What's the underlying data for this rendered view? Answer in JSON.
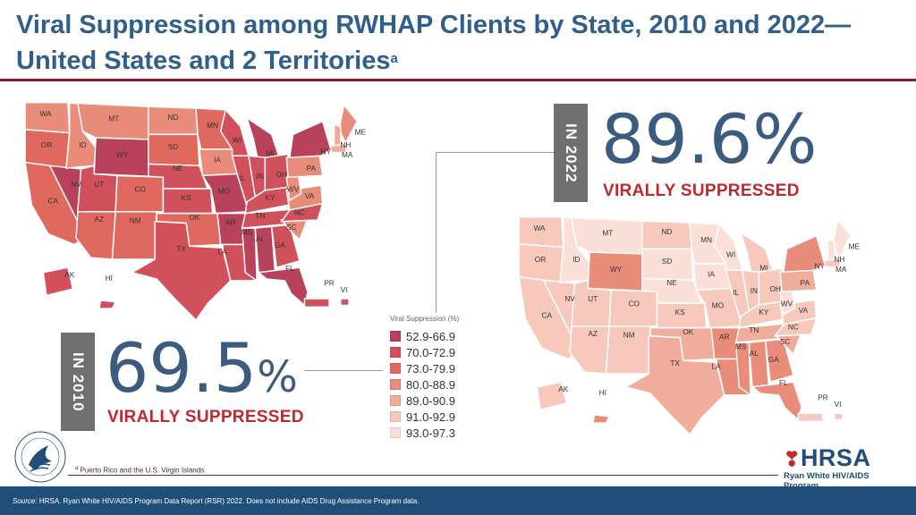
{
  "header": {
    "title_line1": "Viral Suppression among RWHAP Clients by State, 2010 and 2022—",
    "title_line2": "United States and 2 Territories",
    "title_superscript": "a"
  },
  "stat_2022": {
    "year_label": "IN 2022",
    "value": "89.6%",
    "label": "VIRALLY SUPPRESSED"
  },
  "stat_2010": {
    "year_label": "IN 2010",
    "value": "69.5",
    "percent_sign": "%",
    "label": "VIRALLY SUPPRESSED"
  },
  "legend": {
    "title": "Viral Suppression (%)",
    "items": [
      {
        "label": "52.9-66.9",
        "color": "#b8415b"
      },
      {
        "label": "70.0-72.9",
        "color": "#d0505c"
      },
      {
        "label": "73.0-79.9",
        "color": "#e0695f"
      },
      {
        "label": "80.0-88.9",
        "color": "#e98c7a"
      },
      {
        "label": "89.0-90.9",
        "color": "#f1ad9c"
      },
      {
        "label": "91.0-92.9",
        "color": "#f7c9bd"
      },
      {
        "label": "93.0-97.3",
        "color": "#fbe0da"
      }
    ]
  },
  "map_2010": {
    "states": [
      {
        "abbr": "WA",
        "color": "#e98c7a"
      },
      {
        "abbr": "OR",
        "color": "#e0695f"
      },
      {
        "abbr": "CA",
        "color": "#e0695f"
      },
      {
        "abbr": "NV",
        "color": "#b8415b"
      },
      {
        "abbr": "ID",
        "color": "#e98c7a"
      },
      {
        "abbr": "MT",
        "color": "#e98c7a"
      },
      {
        "abbr": "WY",
        "color": "#b8415b"
      },
      {
        "abbr": "UT",
        "color": "#d0505c"
      },
      {
        "abbr": "AZ",
        "color": "#e0695f"
      },
      {
        "abbr": "CO",
        "color": "#e0695f"
      },
      {
        "abbr": "NM",
        "color": "#e0695f"
      },
      {
        "abbr": "ND",
        "color": "#e98c7a"
      },
      {
        "abbr": "SD",
        "color": "#e0695f"
      },
      {
        "abbr": "NE",
        "color": "#d0505c"
      },
      {
        "abbr": "KS",
        "color": "#d0505c"
      },
      {
        "abbr": "OK",
        "color": "#e0695f"
      },
      {
        "abbr": "TX",
        "color": "#d0505c"
      },
      {
        "abbr": "MN",
        "color": "#e0695f"
      },
      {
        "abbr": "IA",
        "color": "#e98c7a"
      },
      {
        "abbr": "MO",
        "color": "#b8415b"
      },
      {
        "abbr": "AR",
        "color": "#b8415b"
      },
      {
        "abbr": "LA",
        "color": "#d0505c"
      },
      {
        "abbr": "WI",
        "color": "#d0505c"
      },
      {
        "abbr": "IL",
        "color": "#d0505c"
      },
      {
        "abbr": "MI",
        "color": "#b8415b"
      },
      {
        "abbr": "IN",
        "color": "#d0505c"
      },
      {
        "abbr": "OH",
        "color": "#d0505c"
      },
      {
        "abbr": "KY",
        "color": "#d0505c"
      },
      {
        "abbr": "TN",
        "color": "#d0505c"
      },
      {
        "abbr": "MS",
        "color": "#b8415b"
      },
      {
        "abbr": "AL",
        "color": "#b8415b"
      },
      {
        "abbr": "GA",
        "color": "#d0505c"
      },
      {
        "abbr": "FL",
        "color": "#b8415b"
      },
      {
        "abbr": "SC",
        "color": "#e98c7a"
      },
      {
        "abbr": "NC",
        "color": "#d0505c"
      },
      {
        "abbr": "VA",
        "color": "#e98c7a"
      },
      {
        "abbr": "WV",
        "color": "#e98c7a"
      },
      {
        "abbr": "PA",
        "color": "#e98c7a"
      },
      {
        "abbr": "NY",
        "color": "#b8415b"
      },
      {
        "abbr": "ME",
        "color": "#e98c7a"
      },
      {
        "abbr": "NH",
        "color": "#f1ad9c"
      },
      {
        "abbr": "MA",
        "color": "#f1ad9c"
      },
      {
        "abbr": "AK",
        "color": "#d0505c"
      },
      {
        "abbr": "HI",
        "color": "#d0505c"
      },
      {
        "abbr": "PR",
        "color": "#d0505c"
      },
      {
        "abbr": "VI",
        "color": "#d0505c"
      }
    ]
  },
  "map_2022": {
    "states": [
      {
        "abbr": "WA",
        "color": "#f7c9bd"
      },
      {
        "abbr": "OR",
        "color": "#f7c9bd"
      },
      {
        "abbr": "CA",
        "color": "#f7c9bd"
      },
      {
        "abbr": "NV",
        "color": "#f7c9bd"
      },
      {
        "abbr": "ID",
        "color": "#fbe0da"
      },
      {
        "abbr": "MT",
        "color": "#fbe0da"
      },
      {
        "abbr": "WY",
        "color": "#e98c7a"
      },
      {
        "abbr": "UT",
        "color": "#f7c9bd"
      },
      {
        "abbr": "AZ",
        "color": "#f7c9bd"
      },
      {
        "abbr": "CO",
        "color": "#f7c9bd"
      },
      {
        "abbr": "NM",
        "color": "#f7c9bd"
      },
      {
        "abbr": "ND",
        "color": "#f7c9bd"
      },
      {
        "abbr": "SD",
        "color": "#fbe0da"
      },
      {
        "abbr": "NE",
        "color": "#fbe0da"
      },
      {
        "abbr": "KS",
        "color": "#f7c9bd"
      },
      {
        "abbr": "OK",
        "color": "#f1ad9c"
      },
      {
        "abbr": "TX",
        "color": "#f1ad9c"
      },
      {
        "abbr": "MN",
        "color": "#fbe0da"
      },
      {
        "abbr": "IA",
        "color": "#fbe0da"
      },
      {
        "abbr": "MO",
        "color": "#f7c9bd"
      },
      {
        "abbr": "AR",
        "color": "#e98c7a"
      },
      {
        "abbr": "LA",
        "color": "#e98c7a"
      },
      {
        "abbr": "WI",
        "color": "#fbe0da"
      },
      {
        "abbr": "IL",
        "color": "#f7c9bd"
      },
      {
        "abbr": "MI",
        "color": "#f7c9bd"
      },
      {
        "abbr": "IN",
        "color": "#f7c9bd"
      },
      {
        "abbr": "OH",
        "color": "#f7c9bd"
      },
      {
        "abbr": "KY",
        "color": "#f7c9bd"
      },
      {
        "abbr": "TN",
        "color": "#f1ad9c"
      },
      {
        "abbr": "MS",
        "color": "#e98c7a"
      },
      {
        "abbr": "AL",
        "color": "#e98c7a"
      },
      {
        "abbr": "GA",
        "color": "#e98c7a"
      },
      {
        "abbr": "FL",
        "color": "#e98c7a"
      },
      {
        "abbr": "SC",
        "color": "#f1ad9c"
      },
      {
        "abbr": "NC",
        "color": "#f7c9bd"
      },
      {
        "abbr": "VA",
        "color": "#f7c9bd"
      },
      {
        "abbr": "WV",
        "color": "#fbe0da"
      },
      {
        "abbr": "PA",
        "color": "#f1ad9c"
      },
      {
        "abbr": "NY",
        "color": "#e98c7a"
      },
      {
        "abbr": "ME",
        "color": "#fbe0da"
      },
      {
        "abbr": "NH",
        "color": "#fbe0da"
      },
      {
        "abbr": "MA",
        "color": "#f7c9bd"
      },
      {
        "abbr": "AK",
        "color": "#f7c9bd"
      },
      {
        "abbr": "HI",
        "color": "#e98c7a"
      },
      {
        "abbr": "PR",
        "color": "#f7c9bd"
      },
      {
        "abbr": "VI",
        "color": "#f7c9bd"
      }
    ]
  },
  "footnote": {
    "marker": "a",
    "text": "Puerto Rico and the U.S. Virgin Islands."
  },
  "footer": {
    "source_label": "Source:",
    "source_text": "HRSA. Ryan White HIV/AIDS Program Data Report (RSR) 2022. Does not include AIDS Drug Assistance Program data."
  },
  "logos": {
    "hhs": "hhs-eagle-seal",
    "hrsa_text": "HRSA",
    "hrsa_subtitle": "Ryan White HIV/AIDS Program"
  }
}
